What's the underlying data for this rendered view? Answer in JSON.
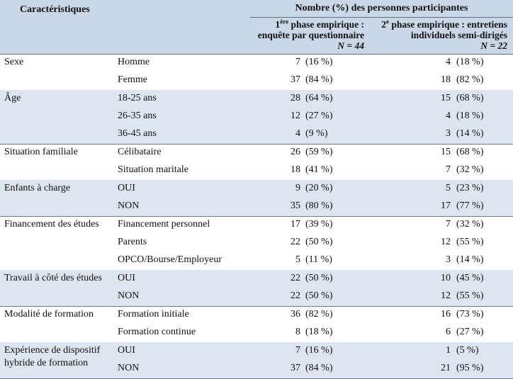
{
  "header": {
    "caracteristiques": "Caractéristiques",
    "nombre": "Nombre (%) des personnes participantes",
    "phase1": {
      "ordinal": "1",
      "sup": "ère",
      "line1_rest": " phase empirique :",
      "line2": "enquête par questionnaire",
      "n": "N = 44"
    },
    "phase2": {
      "ordinal": "2",
      "sup": "e",
      "line1_rest": " phase empirique : entretiens",
      "line2": "individuels semi-dirigés",
      "n": "N = 22"
    }
  },
  "groups": [
    {
      "label": [
        "Sexe"
      ],
      "rows": [
        {
          "option": "Homme",
          "n1": "7",
          "p1": "(16 %)",
          "n2": "4",
          "p2": "(18 %)"
        },
        {
          "option": "Femme",
          "n1": "37",
          "p1": "(84 %)",
          "n2": "18",
          "p2": "(82 %)"
        }
      ]
    },
    {
      "label": [
        "Âge"
      ],
      "rows": [
        {
          "option": "18-25 ans",
          "n1": "28",
          "p1": "(64 %)",
          "n2": "15",
          "p2": "(68 %)"
        },
        {
          "option": "26-35 ans",
          "n1": "12",
          "p1": "(27 %)",
          "n2": "4",
          "p2": "(18 %)"
        },
        {
          "option": "36-45 ans",
          "n1": "4",
          "p1": "(9 %)",
          "n2": "3",
          "p2": "(14 %)"
        }
      ]
    },
    {
      "label": [
        "Situation familiale"
      ],
      "rows": [
        {
          "option": "Célibataire",
          "n1": "26",
          "p1": "(59 %)",
          "n2": "15",
          "p2": "(68 %)"
        },
        {
          "option": "Situation maritale",
          "n1": "18",
          "p1": "(41 %)",
          "n2": "7",
          "p2": "(32 %)"
        }
      ]
    },
    {
      "label": [
        "Enfants à charge"
      ],
      "rows": [
        {
          "option": "OUI",
          "n1": "9",
          "p1": "(20 %)",
          "n2": "5",
          "p2": "(23 %)"
        },
        {
          "option": "NON",
          "n1": "35",
          "p1": "(80 %)",
          "n2": "17",
          "p2": "(77 %)"
        }
      ]
    },
    {
      "label": [
        "Financement des études"
      ],
      "rows": [
        {
          "option": "Financement personnel",
          "n1": "17",
          "p1": "(39 %)",
          "n2": "7",
          "p2": "(32 %)"
        },
        {
          "option": "Parents",
          "n1": "22",
          "p1": "(50 %)",
          "n2": "12",
          "p2": "(55 %)"
        },
        {
          "option": "OPCO/Bourse/Employeur",
          "n1": "5",
          "p1": "(11 %)",
          "n2": "3",
          "p2": "(14 %)"
        }
      ]
    },
    {
      "label": [
        "Travail à côté des études"
      ],
      "rows": [
        {
          "option": "OUI",
          "n1": "22",
          "p1": "(50 %)",
          "n2": "10",
          "p2": "(45 %)"
        },
        {
          "option": "NON",
          "n1": "22",
          "p1": "(50 %)",
          "n2": "12",
          "p2": "(55 %)"
        }
      ]
    },
    {
      "label": [
        "Modalité de formation"
      ],
      "rows": [
        {
          "option": "Formation initiale",
          "n1": "36",
          "p1": "(82 %)",
          "n2": "16",
          "p2": "(73 %)"
        },
        {
          "option": "Formation continue",
          "n1": "8",
          "p1": "(18 %)",
          "n2": "6",
          "p2": "(27 %)"
        }
      ]
    },
    {
      "label": [
        "Expérience de dispositif",
        "hybride de formation"
      ],
      "rows": [
        {
          "option": "OUI",
          "n1": "7",
          "p1": "(16 %)",
          "n2": "1",
          "p2": "(5 %)"
        },
        {
          "option": "NON",
          "n1": "37",
          "p1": "(84 %)",
          "n2": "21",
          "p2": "(95 %)"
        }
      ]
    }
  ],
  "colors": {
    "header_bg": "#c9d7e7",
    "band_bg": "#dde5f0",
    "rule": "#6b7b8c"
  }
}
